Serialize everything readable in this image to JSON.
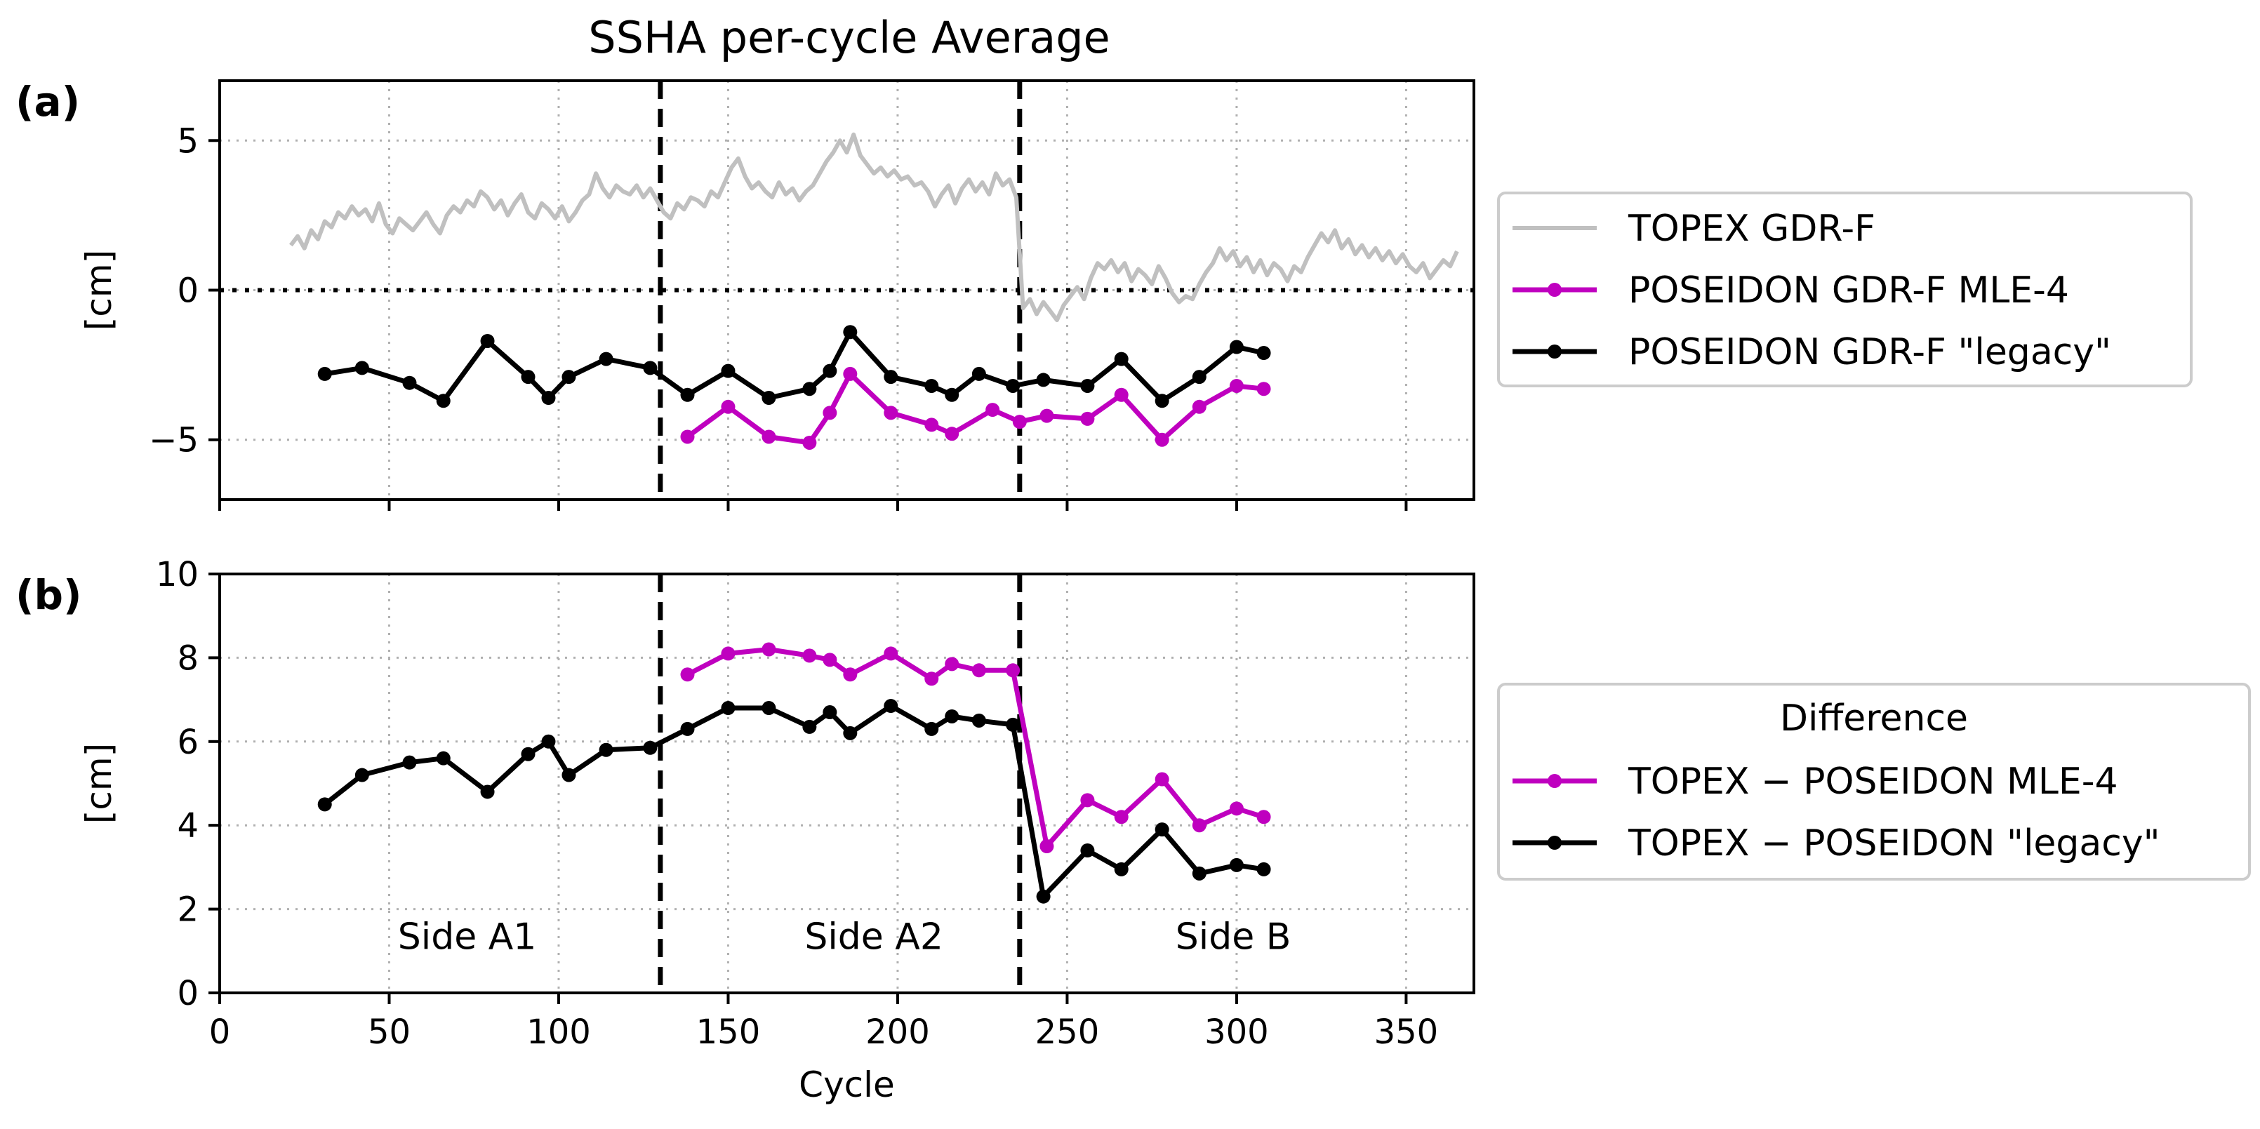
{
  "chart_data": [
    {
      "id": "a",
      "panel_label": "(a)",
      "type": "line",
      "title": "SSHA per-cycle Average",
      "xlabel": "",
      "ylabel": "[cm]",
      "xlim": [
        0,
        370
      ],
      "ylim": [
        -7,
        7
      ],
      "xticks": [
        0,
        50,
        100,
        150,
        200,
        250,
        300,
        350
      ],
      "yticks": [
        -5,
        0,
        5
      ],
      "ytick_labels": [
        "−5",
        "0",
        "5"
      ],
      "show_x_tick_labels": false,
      "grid": true,
      "legend_placement": "right",
      "legend_title": "",
      "zero_line": 0,
      "vlines": [
        130,
        236
      ],
      "series": [
        {
          "name": "TOPEX GDR-F",
          "color": "#c0c0c0",
          "marker": false,
          "x": [
            21,
            23,
            25,
            27,
            29,
            31,
            33,
            35,
            37,
            39,
            41,
            43,
            45,
            47,
            49,
            51,
            53,
            55,
            57,
            59,
            61,
            63,
            65,
            67,
            69,
            71,
            73,
            75,
            77,
            79,
            81,
            83,
            85,
            87,
            89,
            91,
            93,
            95,
            97,
            99,
            101,
            103,
            105,
            107,
            109,
            111,
            113,
            115,
            117,
            119,
            121,
            123,
            125,
            127,
            129,
            131,
            133,
            135,
            137,
            139,
            141,
            143,
            145,
            147,
            149,
            151,
            153,
            155,
            157,
            159,
            161,
            163,
            165,
            167,
            169,
            171,
            173,
            175,
            177,
            179,
            181,
            183,
            185,
            187,
            189,
            191,
            193,
            195,
            197,
            199,
            201,
            203,
            205,
            207,
            209,
            211,
            213,
            215,
            217,
            219,
            221,
            223,
            225,
            227,
            229,
            231,
            233,
            235,
            237,
            239,
            241,
            243,
            245,
            247,
            249,
            251,
            253,
            255,
            257,
            259,
            261,
            263,
            265,
            267,
            269,
            271,
            273,
            275,
            277,
            279,
            281,
            283,
            285,
            287,
            289,
            291,
            293,
            295,
            297,
            299,
            301,
            303,
            305,
            307,
            309,
            311,
            313,
            315,
            317,
            319,
            321,
            323,
            325,
            327,
            329,
            331,
            333,
            335,
            337,
            339,
            341,
            343,
            345,
            347,
            349,
            351,
            353,
            355,
            357,
            359,
            361,
            363,
            365
          ],
          "y": [
            1.5,
            1.8,
            1.4,
            2.0,
            1.7,
            2.3,
            2.1,
            2.6,
            2.4,
            2.8,
            2.5,
            2.7,
            2.3,
            2.9,
            2.2,
            1.9,
            2.4,
            2.2,
            2.0,
            2.3,
            2.6,
            2.2,
            1.9,
            2.5,
            2.8,
            2.6,
            3.0,
            2.8,
            3.3,
            3.1,
            2.7,
            3.0,
            2.5,
            2.9,
            3.2,
            2.6,
            2.4,
            2.9,
            2.7,
            2.4,
            2.8,
            2.3,
            2.6,
            3.0,
            3.2,
            3.9,
            3.4,
            3.1,
            3.5,
            3.3,
            3.2,
            3.5,
            3.1,
            3.4,
            3.0,
            2.6,
            2.4,
            2.9,
            2.7,
            3.1,
            3.0,
            2.8,
            3.3,
            3.1,
            3.6,
            4.1,
            4.4,
            3.8,
            3.4,
            3.6,
            3.3,
            3.1,
            3.6,
            3.2,
            3.4,
            3.0,
            3.3,
            3.5,
            3.9,
            4.3,
            4.6,
            5.0,
            4.6,
            5.2,
            4.5,
            4.2,
            3.9,
            4.1,
            3.8,
            4.0,
            3.7,
            3.8,
            3.5,
            3.6,
            3.3,
            2.8,
            3.2,
            3.5,
            2.9,
            3.4,
            3.7,
            3.3,
            3.6,
            3.2,
            3.9,
            3.5,
            3.7,
            3.1,
            -0.6,
            -0.3,
            -0.8,
            -0.4,
            -0.7,
            -1.0,
            -0.5,
            -0.2,
            0.1,
            -0.3,
            0.4,
            0.9,
            0.7,
            1.0,
            0.6,
            0.9,
            0.3,
            0.7,
            0.5,
            0.2,
            0.8,
            0.4,
            -0.1,
            -0.4,
            -0.2,
            -0.3,
            0.2,
            0.6,
            0.9,
            1.4,
            1.0,
            1.3,
            0.8,
            1.1,
            0.6,
            1.0,
            0.5,
            0.9,
            0.7,
            0.3,
            0.8,
            0.6,
            1.1,
            1.5,
            1.9,
            1.6,
            2.0,
            1.4,
            1.7,
            1.2,
            1.5,
            1.1,
            1.4,
            1.0,
            1.3,
            0.9,
            1.2,
            0.8,
            0.6,
            0.9,
            0.4,
            0.7,
            1.0,
            0.8,
            1.3
          ]
        },
        {
          "name": "POSEIDON GDR-F MLE-4",
          "color": "#bf00bf",
          "marker": true,
          "x": [
            138,
            150,
            162,
            174,
            180,
            186,
            198,
            210,
            216,
            228,
            236,
            244,
            256,
            266,
            278,
            289,
            300,
            308
          ],
          "y": [
            -4.9,
            -3.9,
            -4.9,
            -5.1,
            -4.1,
            -2.8,
            -4.1,
            -4.5,
            -4.8,
            -4.0,
            -4.4,
            -4.2,
            -4.3,
            -3.5,
            -5.0,
            -3.9,
            -3.2,
            -3.3
          ]
        },
        {
          "name": "POSEIDON GDR-F \"legacy\"",
          "color": "#000000",
          "marker": true,
          "x": [
            31,
            42,
            56,
            66,
            79,
            91,
            97,
            103,
            114,
            127,
            138,
            150,
            162,
            174,
            180,
            186,
            198,
            210,
            216,
            224,
            234,
            243,
            256,
            266,
            278,
            289,
            300,
            308
          ],
          "y": [
            -2.8,
            -2.6,
            -3.1,
            -3.7,
            -1.7,
            -2.9,
            -3.6,
            -2.9,
            -2.3,
            -2.6,
            -3.5,
            -2.7,
            -3.6,
            -3.3,
            -2.7,
            -1.4,
            -2.9,
            -3.2,
            -3.5,
            -2.8,
            -3.2,
            -3.0,
            -3.2,
            -2.3,
            -3.7,
            -2.9,
            -1.9,
            -2.1
          ]
        }
      ],
      "annotations": []
    },
    {
      "id": "b",
      "panel_label": "(b)",
      "type": "line",
      "title": "",
      "xlabel": "Cycle",
      "ylabel": "[cm]",
      "xlim": [
        0,
        370
      ],
      "ylim": [
        0,
        10
      ],
      "xticks": [
        0,
        50,
        100,
        150,
        200,
        250,
        300,
        350
      ],
      "yticks": [
        0,
        2,
        4,
        6,
        8,
        10
      ],
      "ytick_labels": [
        "0",
        "2",
        "4",
        "6",
        "8",
        "10"
      ],
      "show_x_tick_labels": true,
      "grid": true,
      "legend_placement": "right",
      "legend_title": "Difference",
      "vlines": [
        130,
        236
      ],
      "series": [
        {
          "name": "TOPEX − POSEIDON MLE-4",
          "color": "#bf00bf",
          "marker": true,
          "x": [
            138,
            150,
            162,
            174,
            180,
            186,
            198,
            210,
            216,
            224,
            234,
            244,
            256,
            266,
            278,
            289,
            300,
            308
          ],
          "y": [
            7.6,
            8.1,
            8.2,
            8.05,
            7.95,
            7.6,
            8.1,
            7.5,
            7.85,
            7.7,
            7.7,
            3.5,
            4.6,
            4.2,
            5.1,
            4.0,
            4.4,
            4.2
          ]
        },
        {
          "name": "TOPEX − POSEIDON \"legacy\"",
          "color": "#000000",
          "marker": true,
          "x": [
            31,
            42,
            56,
            66,
            79,
            91,
            97,
            103,
            114,
            127,
            138,
            150,
            162,
            174,
            180,
            186,
            198,
            210,
            216,
            224,
            234,
            243,
            256,
            266,
            278,
            289,
            300,
            308
          ],
          "y": [
            4.5,
            5.2,
            5.5,
            5.6,
            4.8,
            5.7,
            6.0,
            5.2,
            5.8,
            5.85,
            6.3,
            6.8,
            6.8,
            6.35,
            6.7,
            6.2,
            6.85,
            6.3,
            6.6,
            6.5,
            6.4,
            2.3,
            3.4,
            2.95,
            3.9,
            2.85,
            3.05,
            2.95
          ]
        }
      ],
      "annotations": [
        {
          "text": "Side A1",
          "x": 73,
          "y": 1.35
        },
        {
          "text": "Side A2",
          "x": 193,
          "y": 1.35
        },
        {
          "text": "Side B",
          "x": 299,
          "y": 1.35
        }
      ]
    }
  ]
}
